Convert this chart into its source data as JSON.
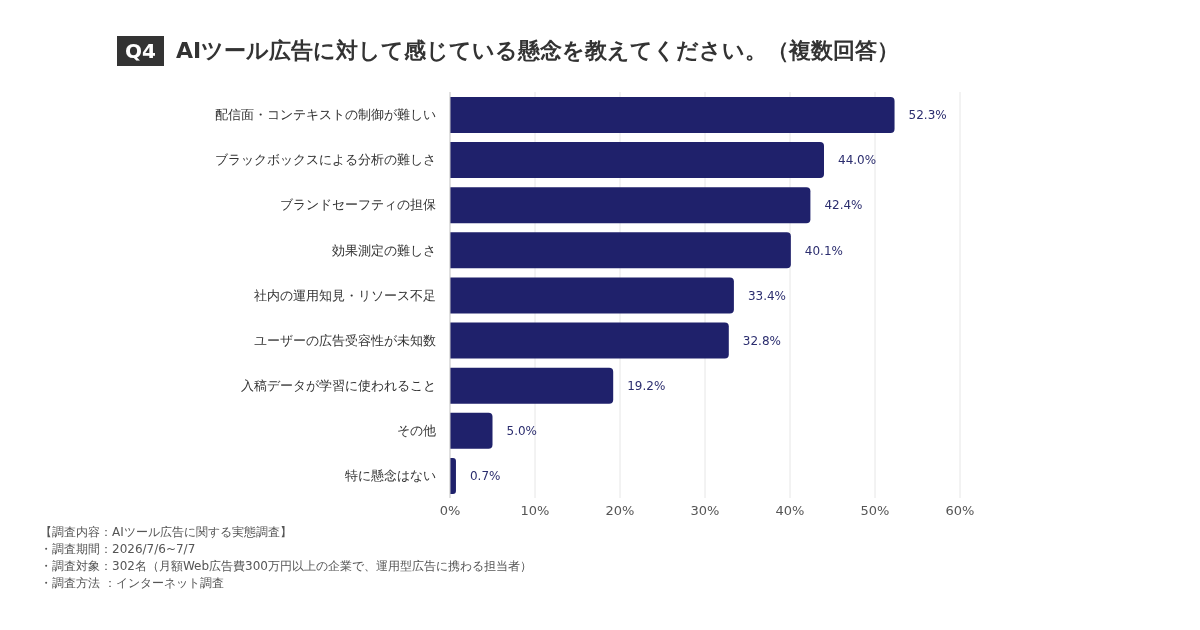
{
  "chart_data": {
    "type": "bar",
    "orientation": "horizontal",
    "title": "Q4 AIツール広告に対して感じている懸念を教えてください。（複数回答）",
    "categories": [
      "配信面・コンテキストの制御が難しい",
      "ブラックボックスによる分析の難しさ",
      "ブランドセーフティの担保",
      "効果測定の難しさ",
      "社内の運用知見・リソース不足",
      "ユーザーの広告受容性が未知数",
      "入稿データが学習に使われること",
      "その他",
      "特に懸念はない"
    ],
    "values": [
      52.3,
      44.0,
      42.4,
      40.1,
      33.4,
      32.8,
      19.2,
      5.0,
      0.7
    ],
    "value_labels": [
      "52.3%",
      "44.0%",
      "42.4%",
      "40.1%",
      "33.4%",
      "32.8%",
      "19.2%",
      "5.0%",
      "0.7%"
    ],
    "color": "#1f216b",
    "xlim": [
      0,
      60
    ],
    "xticks": [
      {
        "value": 0,
        "label": "0%"
      },
      {
        "value": 10,
        "label": "10%"
      },
      {
        "value": 20,
        "label": "20%"
      },
      {
        "value": 30,
        "label": "30%"
      },
      {
        "value": 40,
        "label": "40%"
      },
      {
        "value": 50,
        "label": "50%"
      },
      {
        "value": 60,
        "label": "60%"
      }
    ],
    "grid": "x",
    "legend": false,
    "annotations": [
      "【調査内容：AIツール広告に関する実態調査】",
      "・調査期間：2026/7/6~7/7",
      "・調査対象：302名（月額Web広告費300万円以上の企業で、運用型広告に携わる担当者）",
      "・調査方法 ：インターネット調査"
    ]
  }
}
